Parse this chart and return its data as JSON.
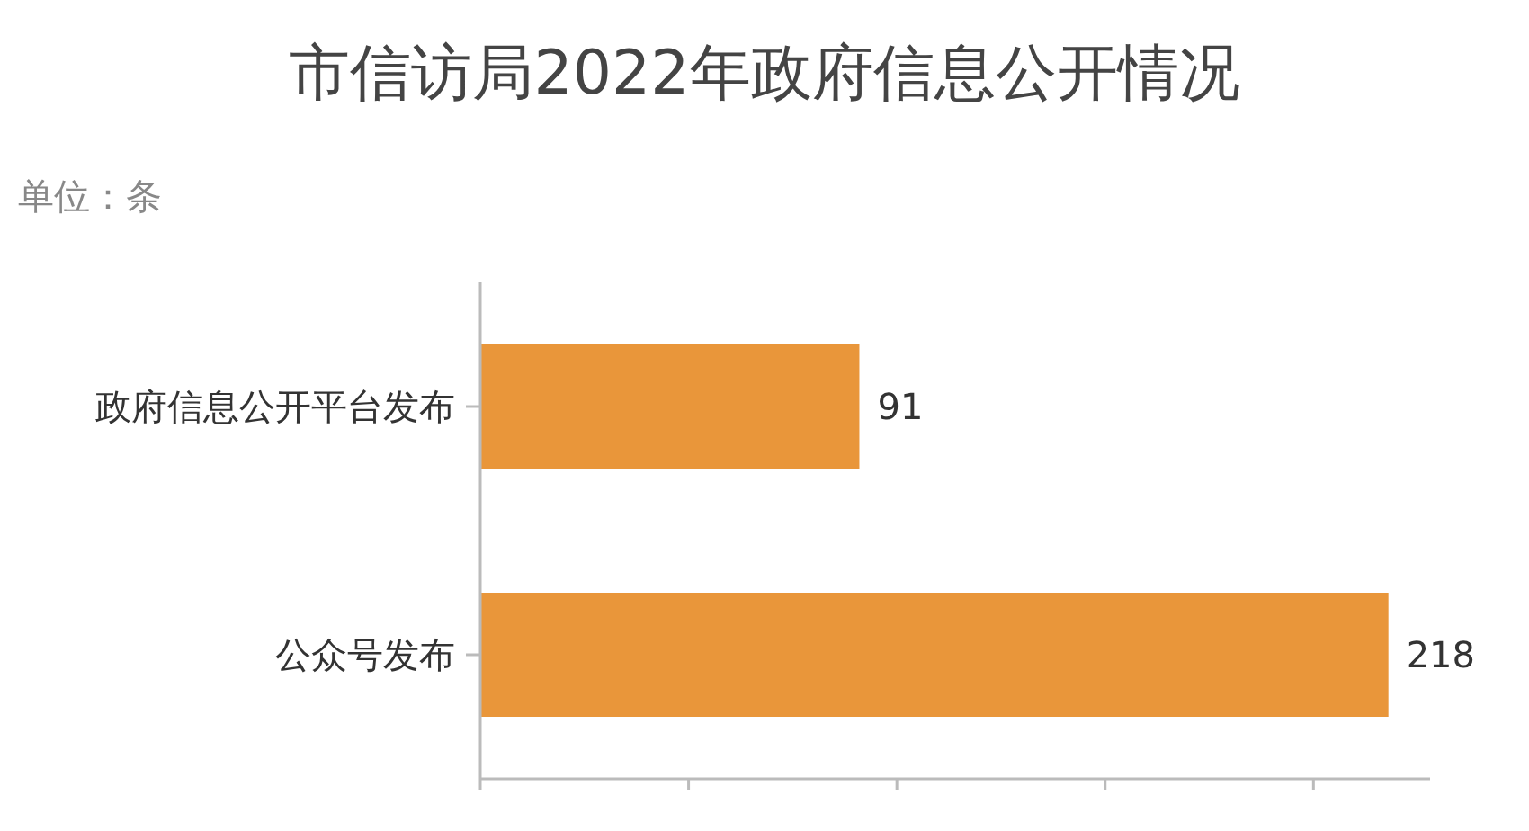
{
  "chart_data": {
    "type": "bar",
    "title": "市信访局2022年政府信息公开情况",
    "annotations": [
      "单位：条"
    ],
    "orientation": "horizontal",
    "categories": [
      "政府信息公开平台发布",
      "公众号发布"
    ],
    "values": [
      91,
      218
    ],
    "color": "#e9963a",
    "data_labels": true,
    "xlim": [
      0,
      228
    ],
    "xticks": [
      {
        "value": 0,
        "label": null
      },
      {
        "value": 50,
        "label": null
      },
      {
        "value": 100,
        "label": null
      },
      {
        "value": 150,
        "label": null
      },
      {
        "value": 200,
        "label": null
      }
    ],
    "tick_labels": "y"
  }
}
